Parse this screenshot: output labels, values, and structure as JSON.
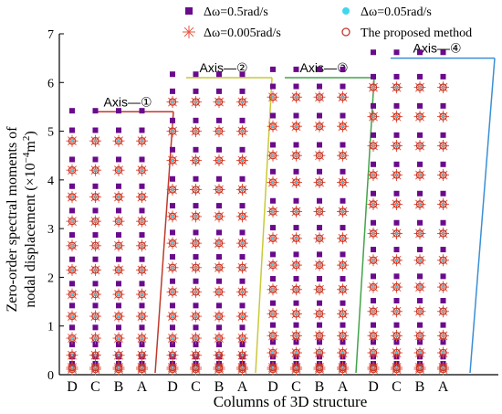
{
  "chart_data": {
    "type": "scatter",
    "title": "",
    "xlabel": "Columns of  3D structure",
    "ylabel_line1": "Zero-order spectral moments of",
    "ylabel_line2": "nodal displacement (×10",
    "ylabel_exp": "−4",
    "ylabel_unit": "m",
    "ylabel_unit_exp": "2",
    "ylabel_close": ")",
    "ylim": [
      0,
      7
    ],
    "yticks": [
      "0",
      "1",
      "2",
      "3",
      "4",
      "5",
      "6",
      "7"
    ],
    "xtick_labels": [
      "D",
      "C",
      "B",
      "A",
      "D",
      "C",
      "B",
      "A",
      "D",
      "C",
      "B",
      "A",
      "D",
      "C",
      "B",
      "A"
    ],
    "legend": [
      {
        "label": "Δω=0.5rad/s",
        "marker": "square",
        "color": "#6a0a8c"
      },
      {
        "label": "Δω=0.05rad/s",
        "marker": "dot",
        "color": "#3fd7f0"
      },
      {
        "label": "Δω=0.005rad/s",
        "marker": "asterisk",
        "color": "#e8533f"
      },
      {
        "label": "The proposed method",
        "marker": "circle",
        "color": "#c0392b"
      }
    ],
    "axes_groups": [
      {
        "label": "Axis—①",
        "color": "#c0392b",
        "level": 5.4
      },
      {
        "label": "Axis—②",
        "color": "#c9c93a",
        "level": 6.1
      },
      {
        "label": "Axis—③",
        "color": "#44a34a",
        "level": 6.1
      },
      {
        "label": "Axis—④",
        "color": "#3a8fd6",
        "level": 6.5
      }
    ],
    "series_levels": [
      [
        0.0,
        0.15,
        0.4,
        0.75,
        1.2,
        1.65,
        2.15,
        2.65,
        3.15,
        3.65,
        4.2,
        4.8,
        5.2
      ],
      [
        0.0,
        0.15,
        0.4,
        0.75,
        1.2,
        1.7,
        2.2,
        2.7,
        3.25,
        3.8,
        4.4,
        5.0,
        5.6,
        5.95
      ],
      [
        0.0,
        0.15,
        0.45,
        0.8,
        1.25,
        1.75,
        2.25,
        2.8,
        3.35,
        3.95,
        4.5,
        5.1,
        5.7,
        6.05
      ],
      [
        0.0,
        0.15,
        0.45,
        0.8,
        1.3,
        1.8,
        2.35,
        2.9,
        3.5,
        4.1,
        4.7,
        5.3,
        5.9,
        6.4
      ]
    ]
  },
  "colors": {
    "square": "#6a0a8c",
    "circle": "#c0392b",
    "asterisk": "#e8533f",
    "dot": "#3fd7f0",
    "axis": "#000000"
  }
}
